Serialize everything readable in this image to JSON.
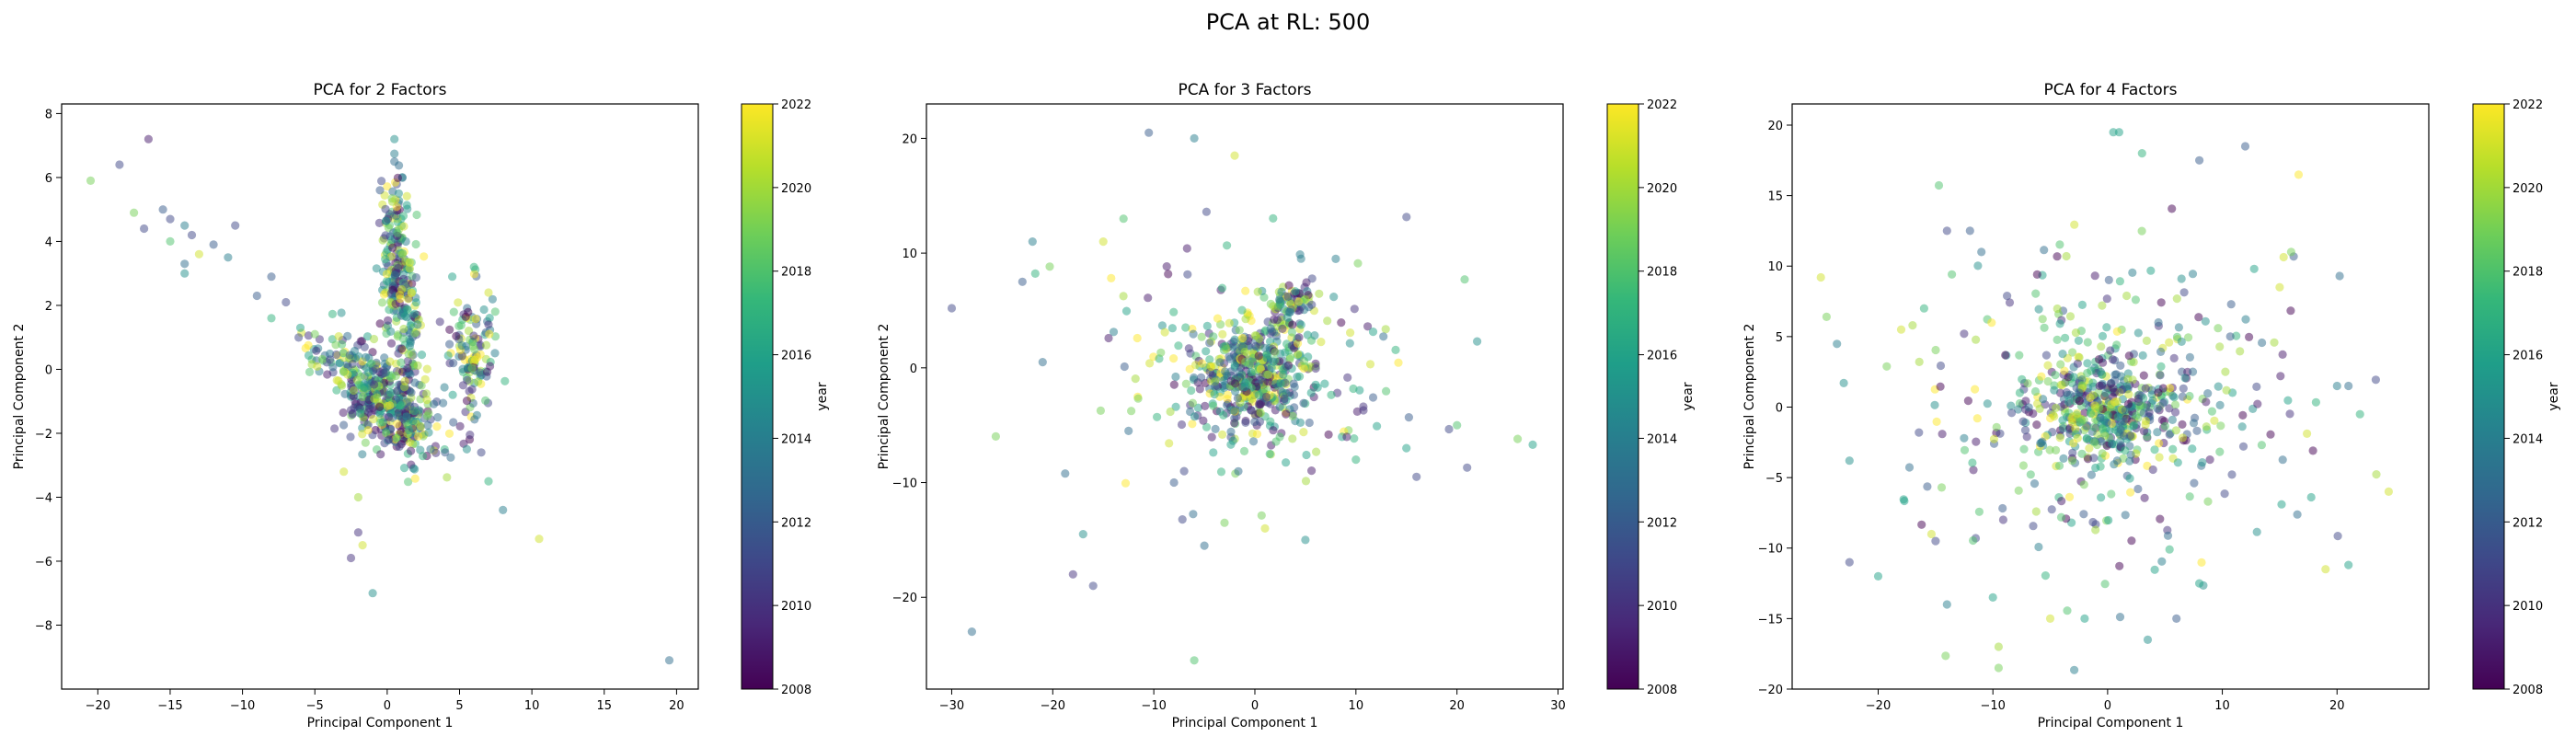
{
  "figure": {
    "suptitle": "PCA at RL: 500"
  },
  "colors": {
    "viridis": [
      "#440154",
      "#482878",
      "#3e4989",
      "#31688e",
      "#26828e",
      "#1f9e89",
      "#35b779",
      "#6ece58",
      "#b5de2b",
      "#fde725"
    ],
    "colorbar_label": "year"
  },
  "chart_data": [
    {
      "type": "scatter",
      "title": "PCA for 2 Factors",
      "xlabel": "Principal Component 1",
      "ylabel": "Principal Component 2",
      "xlim": [
        -22.5,
        21.5
      ],
      "ylim": [
        -10,
        8.3
      ],
      "xticks": [
        -20,
        -15,
        -10,
        -5,
        0,
        5,
        10,
        15,
        20
      ],
      "yticks": [
        -8,
        -6,
        -4,
        -2,
        0,
        2,
        4,
        6,
        8
      ],
      "colorbar": {
        "label": "year",
        "range": [
          2008,
          2022
        ],
        "ticks": [
          2008,
          2010,
          2012,
          2014,
          2016,
          2018,
          2020,
          2022
        ]
      },
      "clusters": [
        {
          "cx": 0,
          "cy": -1,
          "sx": 1.8,
          "sy": 0.7,
          "n": 420,
          "tilt": -0.3
        },
        {
          "cx": 0.6,
          "cy": 3.5,
          "sx": 0.5,
          "sy": 1.3,
          "n": 160,
          "tilt": 0
        },
        {
          "cx": 1.5,
          "cy": 1.3,
          "sx": 0.4,
          "sy": 1.2,
          "n": 90,
          "tilt": 0
        },
        {
          "cx": 5.8,
          "cy": 0.3,
          "sx": 0.8,
          "sy": 1.0,
          "n": 120,
          "tilt": 0
        },
        {
          "cx": -4,
          "cy": 0.5,
          "sx": 1.2,
          "sy": 0.5,
          "n": 40,
          "tilt": 0
        }
      ],
      "points": [
        [
          -20.5,
          5.9,
          2019
        ],
        [
          -18.5,
          6.4,
          2011
        ],
        [
          -16.5,
          7.2,
          2009
        ],
        [
          -17.5,
          4.9,
          2019
        ],
        [
          -16.8,
          4.4,
          2011
        ],
        [
          -15.5,
          5.0,
          2012
        ],
        [
          -15,
          4.7,
          2011
        ],
        [
          -15,
          4.0,
          2018
        ],
        [
          -14,
          4.5,
          2014
        ],
        [
          -13.5,
          4.2,
          2011
        ],
        [
          -13,
          3.6,
          2021
        ],
        [
          -14,
          3.3,
          2013
        ],
        [
          -14,
          3.0,
          2015
        ],
        [
          -12,
          3.9,
          2012
        ],
        [
          -11,
          3.5,
          2014
        ],
        [
          -10.5,
          4.5,
          2011
        ],
        [
          -9,
          2.3,
          2012
        ],
        [
          -8,
          2.9,
          2012
        ],
        [
          -8,
          1.6,
          2017
        ],
        [
          -7,
          2.1,
          2011
        ],
        [
          -6,
          1.3,
          2016
        ],
        [
          -5,
          1.1,
          2019
        ],
        [
          -3,
          -3.2,
          2021
        ],
        [
          -2,
          -4.0,
          2020
        ],
        [
          -2,
          -5.1,
          2010
        ],
        [
          -1.7,
          -5.5,
          2021
        ],
        [
          -2.5,
          -5.9,
          2010
        ],
        [
          -1,
          -7.0,
          2015
        ],
        [
          0.5,
          7.2,
          2015
        ],
        [
          0.5,
          6.5,
          2013
        ],
        [
          -0.5,
          5.6,
          2012
        ],
        [
          0.8,
          5.5,
          2015
        ],
        [
          1,
          2.5,
          2021
        ],
        [
          6,
          3.2,
          2017
        ],
        [
          7,
          2.4,
          2021
        ],
        [
          4.5,
          2.9,
          2016
        ],
        [
          5.5,
          -2.5,
          2015
        ],
        [
          6.5,
          -2.6,
          2011
        ],
        [
          7,
          -3.5,
          2017
        ],
        [
          8,
          -4.4,
          2014
        ],
        [
          3,
          -2.5,
          2013
        ],
        [
          4,
          -2.6,
          2012
        ],
        [
          10.5,
          -5.3,
          2021
        ],
        [
          19.5,
          -9.1,
          2013
        ],
        [
          1.5,
          -1.9,
          2016
        ]
      ]
    },
    {
      "type": "scatter",
      "title": "PCA for 3 Factors",
      "xlabel": "Principal Component 1",
      "ylabel": "Principal Component 2",
      "xlim": [
        -32.5,
        30.5
      ],
      "ylim": [
        -28,
        23
      ],
      "xticks": [
        -30,
        -20,
        -10,
        0,
        10,
        20,
        30
      ],
      "yticks": [
        -20,
        -10,
        0,
        10,
        20
      ],
      "colorbar": {
        "label": "year",
        "range": [
          2008,
          2022
        ],
        "ticks": [
          2008,
          2010,
          2012,
          2014,
          2016,
          2018,
          2020,
          2022
        ]
      },
      "clusters": [
        {
          "cx": 0,
          "cy": -0.5,
          "sx": 2.8,
          "sy": 2.3,
          "n": 420,
          "tilt": 0
        },
        {
          "cx": 3.8,
          "cy": 5.5,
          "sx": 1.1,
          "sy": 1.0,
          "n": 70,
          "tilt": 0
        },
        {
          "cx": 0,
          "cy": -0.5,
          "sx": 8.0,
          "sy": 5.5,
          "n": 190,
          "tilt": 0
        }
      ],
      "points": [
        [
          -30,
          5.2,
          2011
        ],
        [
          -28,
          -23,
          2013
        ],
        [
          -10.5,
          20.5,
          2012
        ],
        [
          -6,
          20,
          2014
        ],
        [
          -2,
          18.5,
          2021
        ],
        [
          -22,
          11,
          2014
        ],
        [
          -13,
          13,
          2018
        ],
        [
          -18,
          -18,
          2010
        ],
        [
          -17,
          -14.5,
          2015
        ],
        [
          -16,
          -19,
          2011
        ],
        [
          -6,
          -25.5,
          2018
        ],
        [
          -5,
          -15.5,
          2013
        ],
        [
          -3,
          -13.5,
          2019
        ],
        [
          1,
          -14,
          2021
        ],
        [
          5,
          -15,
          2015
        ],
        [
          -8,
          -10,
          2012
        ],
        [
          -7,
          -9,
          2011
        ],
        [
          20,
          -5,
          2018
        ],
        [
          22,
          2.3,
          2015
        ],
        [
          26,
          -6.2,
          2019
        ],
        [
          27.5,
          -6.7,
          2016
        ],
        [
          21,
          -8.7,
          2011
        ],
        [
          16,
          -9.5,
          2011
        ],
        [
          15,
          -7,
          2016
        ],
        [
          8,
          9.5,
          2014
        ],
        [
          -21,
          0.5,
          2013
        ],
        [
          -23,
          7.5,
          2012
        ],
        [
          -15,
          11,
          2021
        ],
        [
          -12.5,
          -5.5,
          2013
        ],
        [
          10,
          -8,
          2017
        ]
      ]
    },
    {
      "type": "scatter",
      "title": "PCA for 4 Factors",
      "xlabel": "Principal Component 1",
      "ylabel": "Principal Component 2",
      "xlim": [
        -27.5,
        28
      ],
      "ylim": [
        -20,
        21.5
      ],
      "xticks": [
        -20,
        -10,
        0,
        10,
        20
      ],
      "yticks": [
        -20,
        -15,
        -10,
        -5,
        0,
        5,
        10,
        15,
        20
      ],
      "colorbar": {
        "label": "year",
        "range": [
          2008,
          2022
        ],
        "ticks": [
          2008,
          2010,
          2012,
          2014,
          2016,
          2018,
          2020,
          2022
        ]
      },
      "clusters": [
        {
          "cx": 0,
          "cy": 0,
          "sx": 3.2,
          "sy": 1.8,
          "n": 380,
          "tilt": 0
        },
        {
          "cx": 0,
          "cy": 0,
          "sx": 8.5,
          "sy": 6.0,
          "n": 320,
          "tilt": 0
        }
      ],
      "points": [
        [
          -25,
          9.2,
          2021
        ],
        [
          -24.5,
          6.4,
          2019
        ],
        [
          -23,
          1.7,
          2015
        ],
        [
          -22.5,
          -3.8,
          2015
        ],
        [
          -22.5,
          -11,
          2011
        ],
        [
          -20,
          -12,
          2016
        ],
        [
          -14,
          12.5,
          2011
        ],
        [
          -12,
          12.5,
          2012
        ],
        [
          -11,
          11,
          2013
        ],
        [
          -10,
          -13.5,
          2016
        ],
        [
          -9.5,
          -17,
          2020
        ],
        [
          -9.5,
          -18.5,
          2019
        ],
        [
          -5,
          -15,
          2021
        ],
        [
          -2,
          -15,
          2016
        ],
        [
          0.5,
          19.5,
          2016
        ],
        [
          1,
          19.5,
          2016
        ],
        [
          3,
          18,
          2017
        ],
        [
          8,
          17.5,
          2012
        ],
        [
          12,
          18.5,
          2012
        ],
        [
          16,
          11,
          2019
        ],
        [
          15,
          8.5,
          2021
        ],
        [
          19,
          -11.5,
          2021
        ],
        [
          21,
          -11.2,
          2016
        ],
        [
          24.5,
          -6,
          2021
        ],
        [
          22,
          -0.5,
          2017
        ],
        [
          20,
          1.5,
          2014
        ],
        [
          21,
          1.5,
          2013
        ],
        [
          8,
          -12.5,
          2016
        ],
        [
          6,
          -15,
          2012
        ],
        [
          3.5,
          -16.5,
          2015
        ],
        [
          -14,
          -14,
          2014
        ],
        [
          -15,
          -9.5,
          2011
        ],
        [
          -16,
          7,
          2017
        ],
        [
          -17,
          5.8,
          2020
        ],
        [
          -18,
          5.5,
          2021
        ]
      ]
    }
  ]
}
